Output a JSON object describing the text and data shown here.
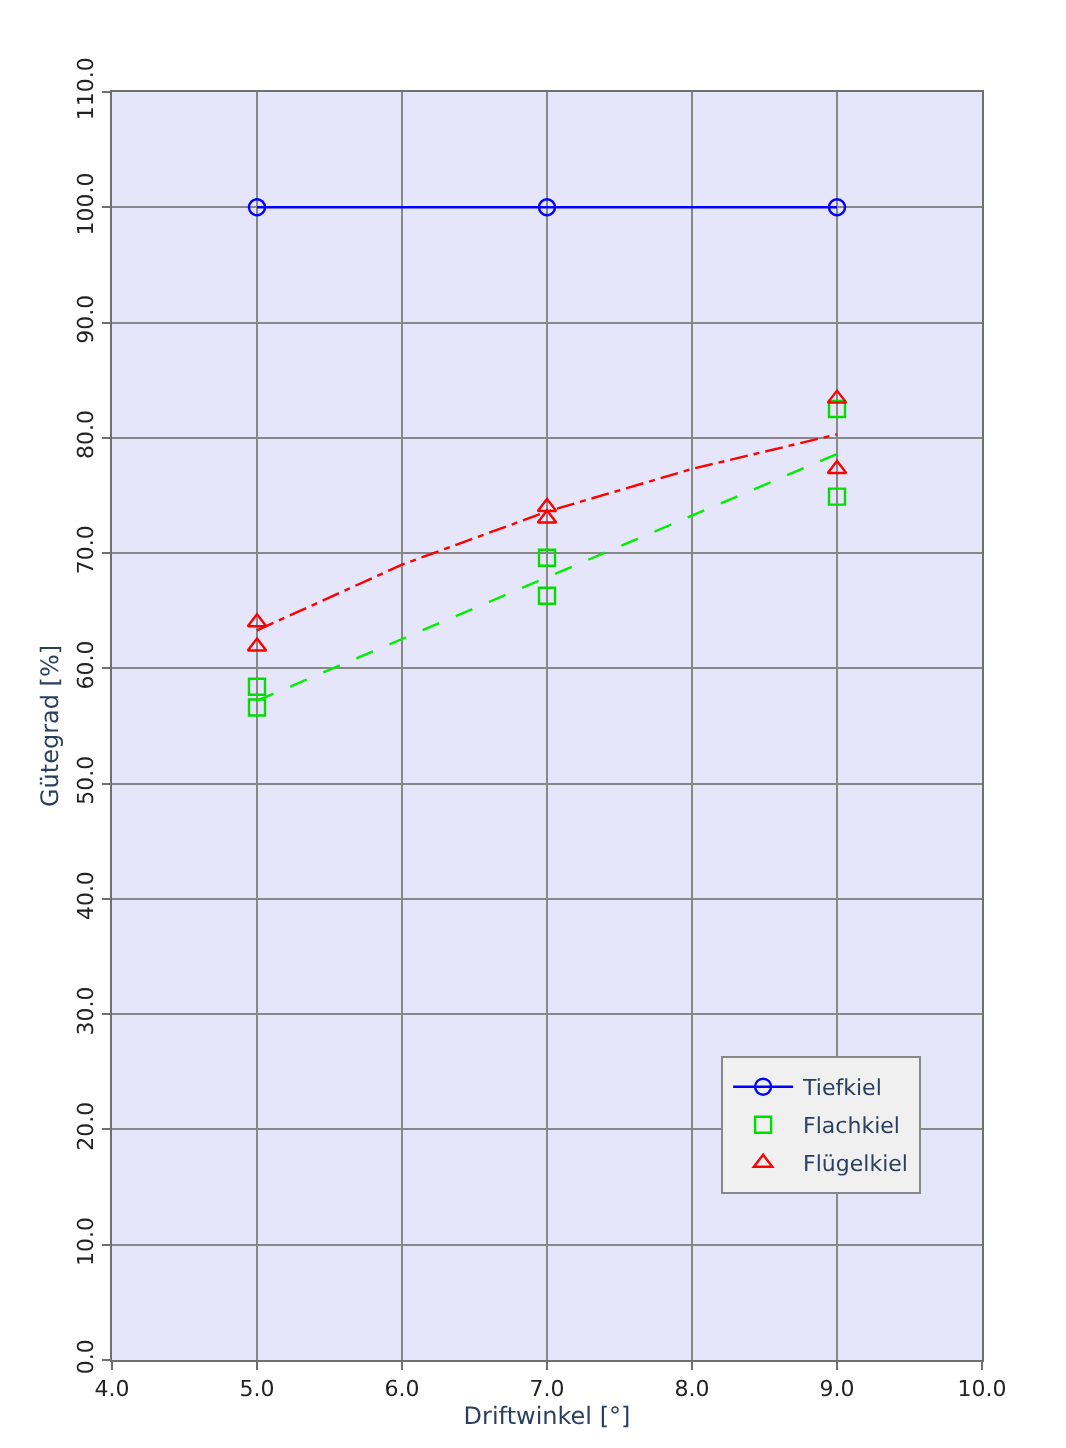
{
  "chart_data": {
    "type": "line",
    "xlabel": "Driftwinkel [°]",
    "ylabel": "Gütegrad [%]",
    "xlim": [
      4,
      10
    ],
    "ylim": [
      0,
      110
    ],
    "xticks": [
      {
        "value": 4,
        "label": "4.0"
      },
      {
        "value": 5,
        "label": "5.0"
      },
      {
        "value": 6,
        "label": "6.0"
      },
      {
        "value": 7,
        "label": "7.0"
      },
      {
        "value": 8,
        "label": "8.0"
      },
      {
        "value": 9,
        "label": "9.0"
      },
      {
        "value": 10,
        "label": "10.0"
      }
    ],
    "yticks": [
      {
        "value": 0,
        "label": "0.0"
      },
      {
        "value": 10,
        "label": "10.0"
      },
      {
        "value": 20,
        "label": "20.0"
      },
      {
        "value": 30,
        "label": "30.0"
      },
      {
        "value": 40,
        "label": "40.0"
      },
      {
        "value": 50,
        "label": "50.0"
      },
      {
        "value": 60,
        "label": "60.0"
      },
      {
        "value": 70,
        "label": "70.0"
      },
      {
        "value": 80,
        "label": "80.0"
      },
      {
        "value": 90,
        "label": "90.0"
      },
      {
        "value": 100,
        "label": "100.0"
      },
      {
        "value": 110,
        "label": "110.0"
      }
    ],
    "grid": true,
    "legend": "bottom right",
    "series": [
      {
        "name": "Tiefkiel",
        "color": "#0000ff",
        "marker": "circle",
        "line_style": "solid",
        "x": [
          5,
          7,
          9
        ],
        "values": [
          100,
          100,
          100
        ]
      },
      {
        "name": "Flachkiel",
        "type": "scatter",
        "color": "#00dd00",
        "marker": "square",
        "x": [
          5,
          5,
          7,
          7,
          9,
          9
        ],
        "values": [
          58.4,
          56.6,
          69.6,
          66.3,
          82.5,
          74.9
        ]
      },
      {
        "color": "#00ee00",
        "marker": "none",
        "line_style": "dashed",
        "x": [
          5,
          7,
          9
        ],
        "values": [
          57.2,
          67.9,
          78.6
        ]
      },
      {
        "name": "Flügelkiel",
        "type": "scatter",
        "color": "#ff0000",
        "marker": "triangle",
        "x": [
          5,
          5,
          7,
          7,
          9,
          9
        ],
        "values": [
          64.0,
          61.9,
          74.0,
          73.0,
          83.4,
          77.3
        ]
      },
      {
        "color": "#ff0000",
        "marker": "none",
        "line_style": "dashdot",
        "x": [
          5,
          6,
          7,
          8,
          9
        ],
        "values": [
          63.3,
          69.0,
          73.6,
          77.3,
          80.3
        ]
      }
    ]
  }
}
